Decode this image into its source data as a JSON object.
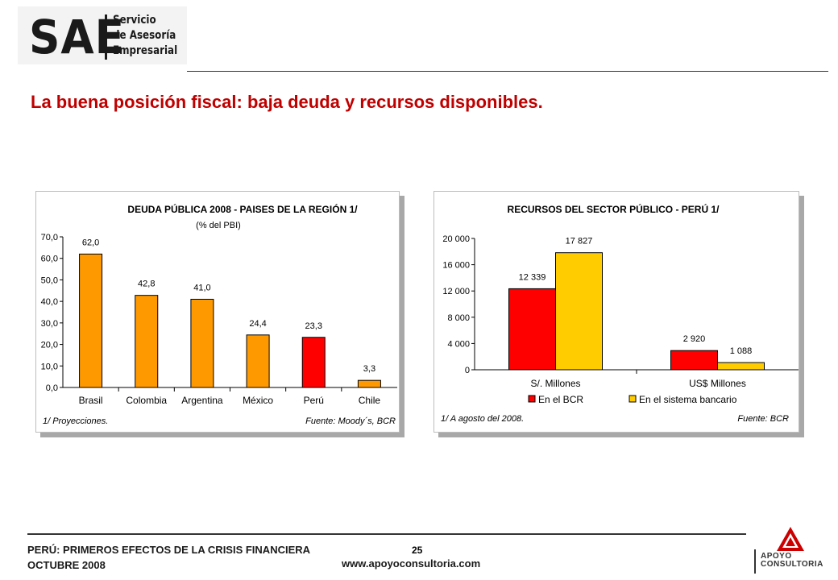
{
  "logo": {
    "brand": "SAE",
    "line1": "Servicio",
    "line2": "de Asesoría",
    "line3": "Empresarial"
  },
  "slide_title": "La buena posición fiscal: baja deuda y recursos disponibles.",
  "colors": {
    "title": "#c00000",
    "orange": "#ff9900",
    "red": "#ff0000",
    "yellow": "#ffcc00"
  },
  "chart_data": [
    {
      "type": "bar",
      "title": "DEUDA PÚBLICA 2008 - PAISES DE LA REGIÓN 1/",
      "subtitle": "(% del PBI)",
      "categories": [
        "Brasil",
        "Colombia",
        "Argentina",
        "México",
        "Perú",
        "Chile"
      ],
      "values": [
        62.0,
        42.8,
        41.0,
        24.4,
        23.3,
        3.3
      ],
      "value_labels": [
        "62,0",
        "42,8",
        "41,0",
        "24,4",
        "23,3",
        "3,3"
      ],
      "bar_colors": [
        "#ff9900",
        "#ff9900",
        "#ff9900",
        "#ff9900",
        "#ff0000",
        "#ff9900"
      ],
      "ylim": [
        0,
        70
      ],
      "yticks": [
        0,
        10,
        20,
        30,
        40,
        50,
        60,
        70
      ],
      "ytick_labels": [
        "0,0",
        "10,0",
        "20,0",
        "30,0",
        "40,0",
        "50,0",
        "60,0",
        "70,0"
      ],
      "grid": false,
      "note_left": "1/ Proyecciones.",
      "note_right": "Fuente: Moody´s, BCR"
    },
    {
      "type": "bar",
      "title": "RECURSOS DEL SECTOR PÚBLICO - PERÚ 1/",
      "categories": [
        "S/. Millones",
        "US$ Millones"
      ],
      "series": [
        {
          "name": "En el BCR",
          "color": "#ff0000",
          "values": [
            12339,
            2920
          ],
          "labels": [
            "12 339",
            "2 920"
          ]
        },
        {
          "name": "En el sistema bancario",
          "color": "#ffcc00",
          "values": [
            17827,
            1088
          ],
          "labels": [
            "17 827",
            "1 088"
          ]
        }
      ],
      "ylim": [
        0,
        20000
      ],
      "yticks": [
        0,
        4000,
        8000,
        12000,
        16000,
        20000
      ],
      "ytick_labels": [
        "0",
        "4 000",
        "8 000",
        "12 000",
        "16 000",
        "20 000"
      ],
      "grid": false,
      "legend": "bottom",
      "note_left": "1/ A agosto del 2008.",
      "note_right": "Fuente: BCR"
    }
  ],
  "footer": {
    "line1": "PERÚ: PRIMEROS EFECTOS DE LA CRISIS FINANCIERA",
    "line2": "OCTUBRE 2008",
    "page": "25",
    "url": "www.apoyoconsultoria.com",
    "apoyo_line1": "APOYO",
    "apoyo_line2": "CONSULTORIA"
  }
}
